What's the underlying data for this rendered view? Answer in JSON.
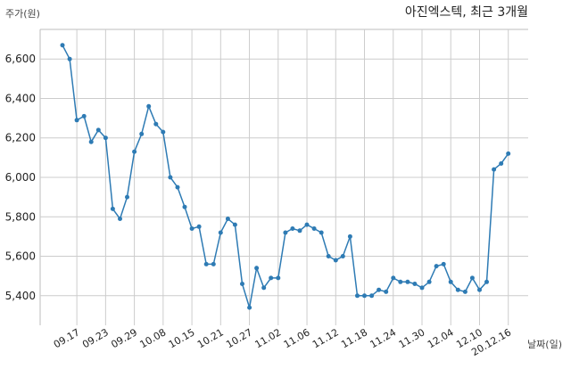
{
  "chart_data": {
    "type": "line",
    "title": "아진엑스텍, 최근 3개월",
    "ylabel": "주가(원)",
    "xlabel": "날짜(일)",
    "ylim": [
      5250,
      6750
    ],
    "yticks": [
      5400,
      5600,
      5800,
      6000,
      6200,
      6400,
      6600
    ],
    "ytick_labels": [
      "5,400",
      "5,600",
      "5,800",
      "6,000",
      "6,200",
      "6,400",
      "6,600"
    ],
    "xtick_labels": [
      "09.17",
      "09.23",
      "09.29",
      "10.08",
      "10.15",
      "10.21",
      "10.27",
      "11.02",
      "11.06",
      "11.12",
      "11.18",
      "11.24",
      "11.30",
      "12.04",
      "12.10",
      "20.12.16"
    ],
    "xtick_index": [
      2,
      6,
      10,
      14,
      18,
      22,
      26,
      30,
      34,
      38,
      42,
      46,
      50,
      54,
      58,
      62
    ],
    "grid": true,
    "line_color": "#2e7bb4",
    "series": [
      {
        "values": [
          6670,
          6600,
          6290,
          6310,
          6180,
          6240,
          6200,
          5840,
          5790,
          5900,
          6130,
          6220,
          6360,
          6270,
          6230,
          6000,
          5950,
          5850,
          5740,
          5750,
          5560,
          5560,
          5720,
          5790,
          5760,
          5460,
          5340,
          5540,
          5440,
          5490,
          5490,
          5720,
          5740,
          5730,
          5760,
          5740,
          5720,
          5600,
          5580,
          5600,
          5700,
          5400,
          5400,
          5400,
          5430,
          5420,
          5490,
          5470,
          5470,
          5460,
          5440,
          5470,
          5550,
          5560,
          5470,
          5430,
          5420,
          5490,
          5430,
          5470,
          6040,
          6070,
          6120
        ]
      }
    ]
  }
}
